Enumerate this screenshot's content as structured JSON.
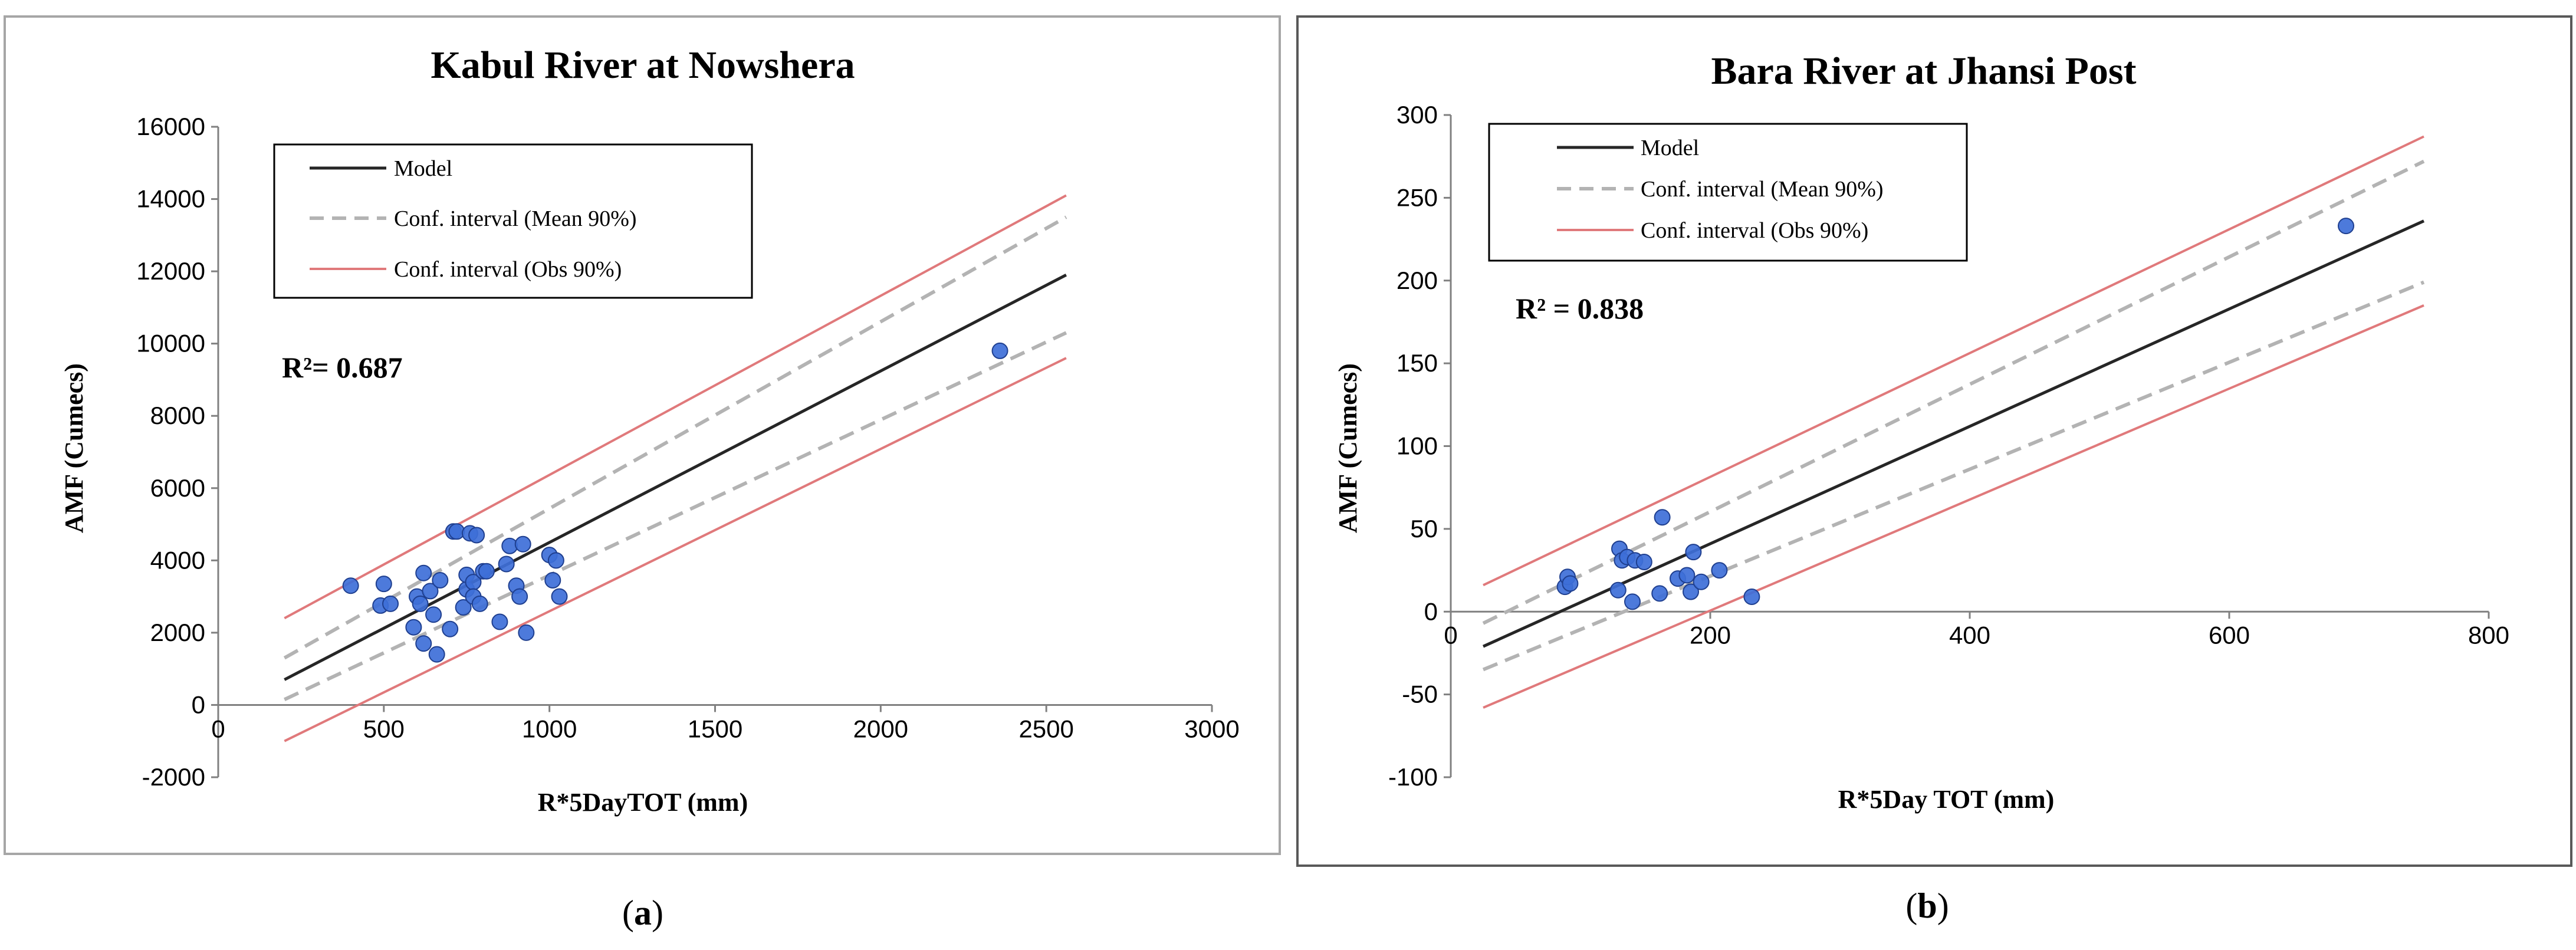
{
  "chart_data": [
    {
      "type": "scatter",
      "panel_label": "a",
      "title": "Kabul River at Nowshera",
      "xlabel": "R*5DayTOT (mm)",
      "ylabel": "AMF (Cumecs)",
      "xlim": [
        0,
        3000
      ],
      "ylim": [
        -2000,
        16000
      ],
      "xticks": [
        0,
        500,
        1000,
        1500,
        2000,
        2500,
        3000
      ],
      "yticks": [
        -2000,
        0,
        2000,
        4000,
        6000,
        8000,
        10000,
        12000,
        14000,
        16000
      ],
      "xtick_labels": [
        "0",
        "500",
        "1000",
        "1500",
        "2000",
        "2500",
        "3000"
      ],
      "ytick_labels": [
        "-2000",
        "0",
        "2000",
        "4000",
        "6000",
        "8000",
        "10000",
        "12000",
        "14000",
        "16000"
      ],
      "r2_label": "R²= 0.687",
      "legend": {
        "position": "top-left",
        "entries": [
          {
            "label": "Model",
            "color": "#262626",
            "style": "solid"
          },
          {
            "label": "Conf. interval (Mean 90%)",
            "color": "#b3b3b3",
            "style": "dashed"
          },
          {
            "label": "Conf. interval (Obs 90%)",
            "color": "#e0797b",
            "style": "solid"
          }
        ]
      },
      "lines": [
        {
          "name": "Model",
          "x": [
            200,
            2560
          ],
          "y": [
            700,
            11900
          ],
          "color": "#262626",
          "style": "solid"
        },
        {
          "name": "Conf. interval (Mean 90%) upper",
          "x": [
            200,
            2560
          ],
          "y": [
            1300,
            13500
          ],
          "color": "#b3b3b3",
          "style": "dashed"
        },
        {
          "name": "Conf. interval (Mean 90%) lower",
          "x": [
            200,
            2560
          ],
          "y": [
            150,
            10300
          ],
          "color": "#b3b3b3",
          "style": "dashed"
        },
        {
          "name": "Conf. interval (Obs 90%) upper",
          "x": [
            200,
            2560
          ],
          "y": [
            2400,
            14100
          ],
          "color": "#e0797b",
          "style": "solid"
        },
        {
          "name": "Conf. interval (Obs 90%) lower",
          "x": [
            200,
            2560
          ],
          "y": [
            -1000,
            9600
          ],
          "color": "#e0797b",
          "style": "solid"
        }
      ],
      "points": {
        "x": [
          400,
          490,
          500,
          520,
          590,
          600,
          610,
          620,
          620,
          640,
          650,
          660,
          670,
          700,
          710,
          720,
          740,
          750,
          750,
          760,
          770,
          770,
          780,
          790,
          800,
          810,
          850,
          870,
          880,
          900,
          910,
          920,
          930,
          1000,
          1010,
          1020,
          1030,
          2360
        ],
        "y": [
          3300,
          2750,
          3350,
          2800,
          2150,
          3000,
          2800,
          1700,
          3650,
          3150,
          2500,
          1400,
          3450,
          2100,
          4800,
          4800,
          2700,
          3200,
          3600,
          4750,
          3400,
          3000,
          4700,
          2800,
          3700,
          3700,
          2300,
          3900,
          4400,
          3300,
          3000,
          4450,
          2000,
          4150,
          3450,
          4000,
          3000,
          9800
        ],
        "color": "#3e6fd8"
      }
    },
    {
      "type": "scatter",
      "panel_label": "b",
      "title": "Bara River at Jhansi Post",
      "xlabel": "R*5Day TOT (mm)",
      "ylabel": "AMF (Cumecs)",
      "xlim": [
        0,
        800
      ],
      "ylim": [
        -100,
        300
      ],
      "xticks": [
        0,
        200,
        400,
        600,
        800
      ],
      "yticks": [
        -100,
        -50,
        0,
        50,
        100,
        150,
        200,
        250,
        300
      ],
      "xtick_labels": [
        "0",
        "200",
        "400",
        "600",
        "800"
      ],
      "ytick_labels": [
        "-100",
        "-50",
        "0",
        "50",
        "100",
        "150",
        "200",
        "250",
        "300"
      ],
      "r2_label": "R²  = 0.838",
      "legend": {
        "position": "top-left",
        "entries": [
          {
            "label": "Model",
            "color": "#262626",
            "style": "solid"
          },
          {
            "label": "Conf. interval (Mean 90%)",
            "color": "#b3b3b3",
            "style": "dashed"
          },
          {
            "label": "Conf. interval (Obs 90%)",
            "color": "#e0797b",
            "style": "solid"
          }
        ]
      },
      "lines": [
        {
          "name": "Model",
          "x": [
            25,
            750
          ],
          "y": [
            -21,
            236
          ],
          "color": "#262626",
          "style": "solid"
        },
        {
          "name": "Conf. interval (Mean 90%) upper",
          "x": [
            25,
            750
          ],
          "y": [
            -7,
            272
          ],
          "color": "#b3b3b3",
          "style": "dashed"
        },
        {
          "name": "Conf. interval (Mean 90%) lower",
          "x": [
            25,
            750
          ],
          "y": [
            -35,
            199
          ],
          "color": "#b3b3b3",
          "style": "dashed"
        },
        {
          "name": "Conf. interval (Obs 90%) upper",
          "x": [
            25,
            750
          ],
          "y": [
            16,
            287
          ],
          "color": "#e0797b",
          "style": "solid"
        },
        {
          "name": "Conf. interval (Obs 90%) lower",
          "x": [
            25,
            750
          ],
          "y": [
            -58,
            185
          ],
          "color": "#e0797b",
          "style": "solid"
        }
      ],
      "points": {
        "x": [
          88,
          90,
          92,
          129,
          130,
          132,
          136,
          140,
          142,
          149,
          161,
          163,
          175,
          182,
          185,
          187,
          193,
          207,
          232,
          690
        ],
        "y": [
          15,
          21,
          17,
          13,
          38,
          31,
          33,
          6,
          31,
          30,
          11,
          57,
          20,
          22,
          12,
          36,
          18,
          25,
          9,
          233
        ],
        "color": "#3e6fd8"
      }
    }
  ]
}
